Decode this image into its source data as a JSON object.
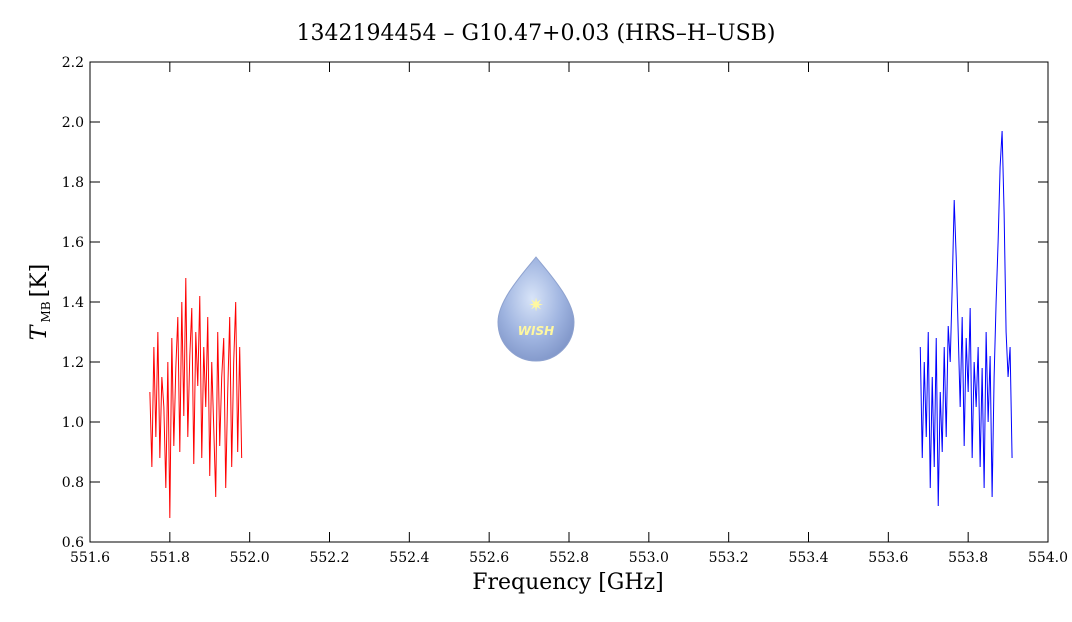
{
  "chart_data": {
    "type": "line",
    "title": "1342194454 – G10.47+0.03 (HRS–H–USB)",
    "xlabel": "Frequency [GHz]",
    "ylabel": {
      "symbol": "T",
      "subscript": "MB",
      "unit": "[K]"
    },
    "logo_text": "WISH",
    "xlim": [
      551.6,
      554.0
    ],
    "xticks": [
      551.6,
      551.8,
      {
        "value": 552.0,
        "label": "552.0"
      },
      552.2,
      552.4,
      552.6,
      552.8,
      {
        "value": 553.0,
        "label": "553.0"
      },
      553.2,
      553.4,
      553.6,
      553.8,
      {
        "value": 554.0,
        "label": "554.0"
      }
    ],
    "ylim": [
      0.6,
      2.2
    ],
    "yticks": [
      0.6,
      0.8,
      {
        "value": 1.0,
        "label": "1.0"
      },
      1.2,
      1.4,
      1.6,
      1.8,
      {
        "value": 2.0,
        "label": "2.0"
      },
      2.2
    ],
    "series": [
      {
        "color": "#ff0000",
        "x": [
          551.75,
          551.755,
          551.76,
          551.765,
          551.77,
          551.775,
          551.78,
          551.785,
          551.79,
          551.795,
          551.8,
          551.805,
          551.81,
          551.815,
          551.82,
          551.825,
          551.83,
          551.835,
          551.84,
          551.845,
          551.85,
          551.855,
          551.86,
          551.865,
          551.87,
          551.875,
          551.88,
          551.885,
          551.89,
          551.895,
          551.9,
          551.905,
          551.91,
          551.915,
          551.92,
          551.925,
          551.93,
          551.935,
          551.94,
          551.945,
          551.95,
          551.955,
          551.96,
          551.965,
          551.97,
          551.975,
          551.98
        ],
        "values": [
          1.1,
          0.85,
          1.25,
          0.95,
          1.3,
          0.88,
          1.15,
          1.05,
          0.78,
          1.2,
          0.68,
          1.28,
          0.92,
          1.18,
          1.35,
          0.9,
          1.4,
          1.02,
          1.48,
          0.95,
          1.22,
          1.38,
          0.86,
          1.3,
          1.12,
          1.42,
          0.88,
          1.25,
          1.05,
          1.35,
          0.82,
          1.2,
          0.98,
          0.75,
          1.3,
          0.92,
          1.15,
          1.28,
          0.78,
          1.1,
          1.35,
          0.85,
          1.2,
          1.4,
          0.9,
          1.25,
          0.88
        ]
      },
      {
        "color": "#0000ff",
        "x": [
          553.68,
          553.685,
          553.69,
          553.695,
          553.7,
          553.705,
          553.71,
          553.715,
          553.72,
          553.725,
          553.73,
          553.735,
          553.74,
          553.745,
          553.75,
          553.755,
          553.76,
          553.765,
          553.77,
          553.775,
          553.78,
          553.785,
          553.79,
          553.795,
          553.8,
          553.805,
          553.81,
          553.815,
          553.82,
          553.825,
          553.83,
          553.835,
          553.84,
          553.845,
          553.85,
          553.855,
          553.86,
          553.865,
          553.87,
          553.875,
          553.88,
          553.885,
          553.89,
          553.895,
          553.9,
          553.905,
          553.91
        ],
        "values": [
          1.25,
          0.88,
          1.2,
          0.95,
          1.3,
          0.78,
          1.15,
          0.85,
          1.28,
          0.72,
          1.1,
          0.9,
          1.25,
          0.95,
          1.32,
          1.2,
          1.45,
          1.74,
          1.55,
          1.3,
          1.05,
          1.35,
          0.92,
          1.28,
          1.1,
          1.38,
          0.88,
          1.2,
          1.05,
          1.25,
          0.85,
          1.18,
          0.78,
          1.3,
          1.0,
          1.22,
          0.75,
          1.15,
          1.4,
          1.6,
          1.85,
          1.97,
          1.7,
          1.3,
          1.15,
          1.25,
          0.88
        ]
      }
    ]
  }
}
